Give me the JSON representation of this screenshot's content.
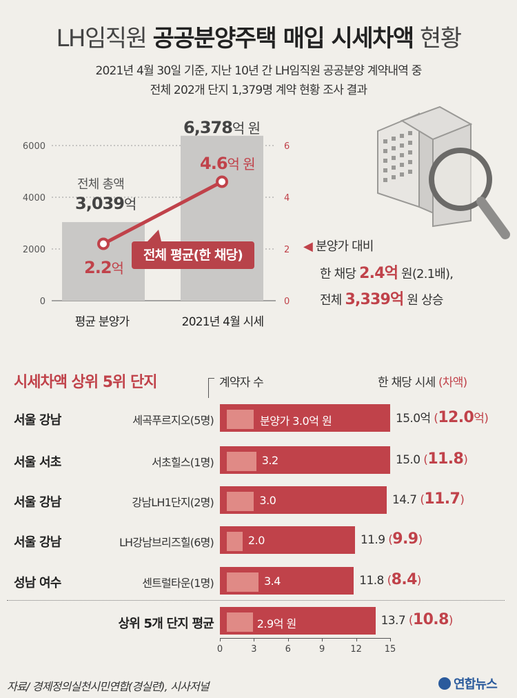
{
  "header": {
    "title_prefix": "LH임직원",
    "title_bold": "공공분양주택 매입 시세차액",
    "title_suffix": "현황",
    "sub1": "2021년 4월 30일 기준, 지난 10년 간 LH임직원 공공분양 계약내역 중",
    "sub2": "전체 202개 단지 1,379명 계약 현황 조사 결과"
  },
  "chart_data": [
    {
      "type": "bar",
      "categories": [
        "평균 분양가",
        "2021년 4월 시세"
      ],
      "series": [
        {
          "values": [
            3039,
            6378
          ]
        }
      ],
      "line_series": {
        "name": "전체 평균(한 채당)",
        "values": [
          2.2,
          4.6
        ]
      },
      "y_left": {
        "ticks": [
          "0",
          "2000",
          "4000",
          "6000"
        ],
        "lim": [
          0,
          6400
        ]
      },
      "y_right": {
        "ticks": [
          "0",
          "2",
          "4",
          "6"
        ],
        "lim": [
          0,
          6.4
        ]
      },
      "annotations": {
        "total_label": "전체 총액",
        "total_val": "3,039",
        "total_unit": "억",
        "price_total_val": "6,378",
        "price_total_unit": "억 원",
        "avg1_val": "2.2",
        "avg1_unit": "억",
        "avg2_val": "4.6",
        "avg2_unit": "억 원",
        "avg_label": "전체 평균(한 채당)"
      },
      "note": {
        "line1": "분양가 대비",
        "line2_pre": "한 채당 ",
        "line2_val": "2.4억",
        "line2_post": " 원(2.1배),",
        "line3_pre": "전체 ",
        "line3_val": "3,339억",
        "line3_post": " 원 상승"
      }
    },
    {
      "type": "bar",
      "title": "시세차액 상위 5위 단지",
      "col_contracts": "계약자 수",
      "col_price": "한 채당 시세",
      "col_diff": "(차액)",
      "xlim": [
        0,
        15
      ],
      "x_ticks": [
        "0",
        "3",
        "6",
        "9",
        "12",
        "15"
      ],
      "rows": [
        {
          "region": "서울 강남",
          "name": "세곡푸르지오(5명)",
          "sale": 3.0,
          "sale_label": "분양가 3.0억 원",
          "price": 15.0,
          "price_label": "15.0억",
          "diff_label": "12.0",
          "diff_unit": "억"
        },
        {
          "region": "서울 서초",
          "name": "서초힐스(1명)",
          "sale": 3.2,
          "sale_label": "3.2",
          "price": 15.0,
          "price_label": "15.0",
          "diff_label": "11.8",
          "diff_unit": ""
        },
        {
          "region": "서울 강남",
          "name": "강남LH1단지(2명)",
          "sale": 3.0,
          "sale_label": "3.0",
          "price": 14.7,
          "price_label": "14.7",
          "diff_label": "11.7",
          "diff_unit": ""
        },
        {
          "region": "서울 강남",
          "name": "LH강남브리즈힐(6명)",
          "sale": 2.0,
          "sale_label": "2.0",
          "price": 11.9,
          "price_label": "11.9",
          "diff_label": "9.9",
          "diff_unit": ""
        },
        {
          "region": "성남 여수",
          "name": "센트럴타운(1명)",
          "sale": 3.4,
          "sale_label": "3.4",
          "price": 11.8,
          "price_label": "11.8",
          "diff_label": "8.4",
          "diff_unit": ""
        }
      ],
      "avg_row": {
        "label": "상위 5개 단지 평균",
        "sale": 2.9,
        "sale_label": "2.9억 원",
        "price": 13.7,
        "price_label": "13.7",
        "diff_label": "10.8",
        "diff_unit": ""
      }
    }
  ],
  "footer": {
    "source": "자료/ 경제정의실천시민연합(경실련), 시사저널",
    "brand": "연합뉴스"
  },
  "colors": {
    "accent": "#c0424a",
    "light_bar": "#e08a86",
    "gray_bar": "#c9c8c6",
    "bg": "#f1efea"
  }
}
